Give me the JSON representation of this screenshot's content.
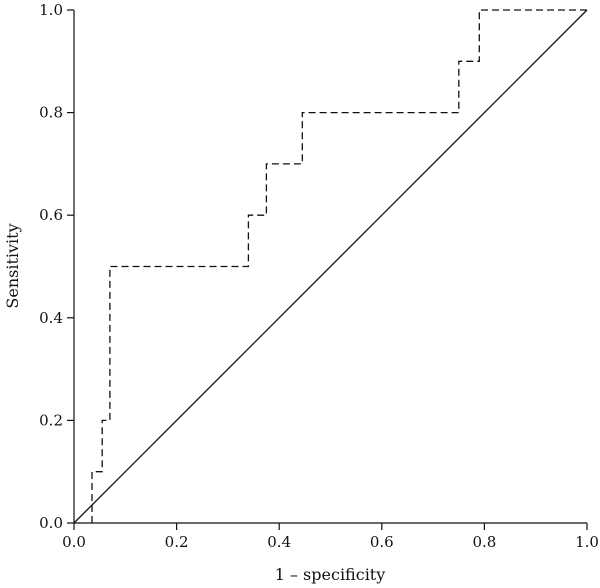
{
  "chart_data": {
    "type": "line",
    "title": "",
    "xlabel": "1 – specificity",
    "ylabel": "Sensitivity",
    "xlim": [
      0,
      1
    ],
    "ylim": [
      0,
      1
    ],
    "xticks": [
      "0.0",
      "0.2",
      "0.4",
      "0.6",
      "0.8",
      "1.0"
    ],
    "yticks": [
      "0.0",
      "0.2",
      "0.4",
      "0.6",
      "0.8",
      "1.0"
    ],
    "grid": false,
    "series": [
      {
        "style": "dashed-step",
        "x": [
          0.035,
          0.035,
          0.055,
          0.055,
          0.07,
          0.07,
          0.34,
          0.34,
          0.375,
          0.375,
          0.445,
          0.445,
          0.75,
          0.75,
          0.79,
          0.79,
          1.0
        ],
        "y": [
          0.0,
          0.1,
          0.1,
          0.2,
          0.2,
          0.5,
          0.5,
          0.6,
          0.6,
          0.7,
          0.7,
          0.8,
          0.8,
          0.9,
          0.9,
          1.0,
          1.0
        ]
      },
      {
        "style": "solid-diagonal",
        "x": [
          0,
          1
        ],
        "y": [
          0,
          1
        ]
      }
    ]
  }
}
